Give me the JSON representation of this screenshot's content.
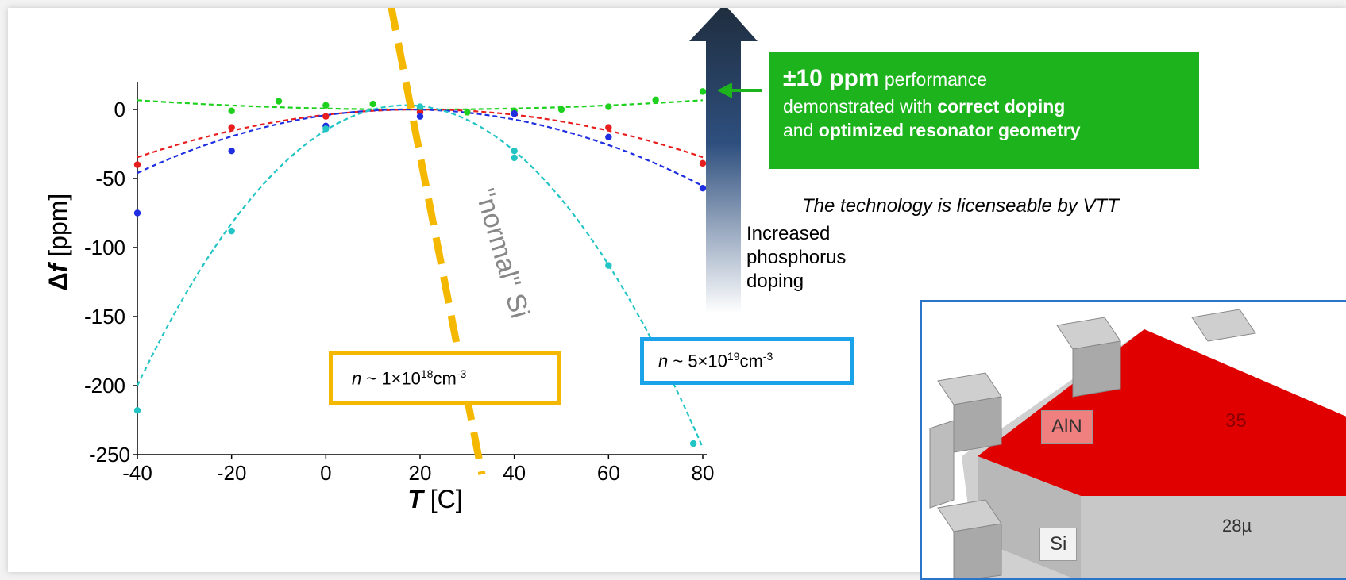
{
  "chart_data": {
    "type": "line",
    "xlabel_symbol": "T",
    "xlabel_unit": " [C]",
    "ylabel_prefix": "Δ",
    "ylabel_symbol": "f",
    "ylabel_unit": " [ppm]",
    "xlim": [
      -40,
      80
    ],
    "ylim": [
      -250,
      0
    ],
    "x_ticks": [
      -40,
      -20,
      0,
      20,
      40,
      60,
      80
    ],
    "y_ticks": [
      0,
      -50,
      -100,
      -150,
      -200,
      -250
    ],
    "grid": false,
    "series": [
      {
        "color": "#1fd11f",
        "points": [
          [
            -20,
            -1
          ],
          [
            -10,
            6
          ],
          [
            0,
            3
          ],
          [
            10,
            4
          ],
          [
            20,
            1
          ],
          [
            30,
            -2
          ],
          [
            40,
            -1
          ],
          [
            50,
            0
          ],
          [
            60,
            2
          ],
          [
            70,
            7
          ],
          [
            80,
            13
          ]
        ],
        "fit_a": 0.00188,
        "fit_b": -0.075,
        "fit_c": 0.7
      },
      {
        "color": "#e81e1e",
        "points": [
          [
            -40,
            -40
          ],
          [
            -20,
            -13
          ],
          [
            0,
            -5
          ],
          [
            20,
            -2
          ],
          [
            40,
            -3
          ],
          [
            60,
            -13
          ],
          [
            80,
            -39
          ]
        ],
        "fit_a": -0.00961,
        "fit_b": 0.3846,
        "fit_c": -3.85
      },
      {
        "color": "#1e2ee0",
        "points": [
          [
            -40,
            -75
          ],
          [
            -20,
            -30
          ],
          [
            0,
            -12
          ],
          [
            20,
            -5
          ],
          [
            40,
            -3
          ],
          [
            60,
            -20
          ],
          [
            80,
            -57
          ]
        ],
        "fit_a": -0.01406,
        "fit_b": 0.4844,
        "fit_c": -4.17
      },
      {
        "color": "#22c4c4",
        "points": [
          [
            -40,
            -218
          ],
          [
            -20,
            -88
          ],
          [
            0,
            -14
          ],
          [
            20,
            2
          ],
          [
            40,
            -30
          ],
          [
            40,
            -35
          ],
          [
            60,
            -113
          ],
          [
            78,
            -242
          ]
        ],
        "fit_a": -0.0625,
        "fit_b": 2.125,
        "fit_c": -15.0
      }
    ],
    "annotations": {
      "normal_si": "\"normal\" Si",
      "doping": [
        "Increased",
        "phosphorus",
        "doping"
      ],
      "n1": {
        "n": "n",
        "prefix": " ~ 1×10",
        "exp1": "18",
        "unit": "cm",
        "exp2": "-3"
      },
      "n2": {
        "n": "n",
        "prefix": " ~ 5×10",
        "exp1": "19",
        "unit": "cm",
        "exp2": "-3"
      }
    }
  },
  "callout": {
    "headline": "±10 ppm",
    "line1": " performance",
    "line2a": "demonstrated with ",
    "line2b": "correct doping",
    "line3a": "and ",
    "line3b": "optimized resonator geometry",
    "bg_color": "#1db31d"
  },
  "license_text": "The technology is licenseable by VTT",
  "resonator": {
    "label_top": "AlN",
    "label_bottom": "Si",
    "dim_right": "35",
    "dim_bottom": "28µ"
  },
  "colors": {
    "orange_dash": "#f5b800",
    "arrow_dark": "#1f2d3d",
    "arrow_light": "#ffffff",
    "red_fill": "#e60000"
  }
}
